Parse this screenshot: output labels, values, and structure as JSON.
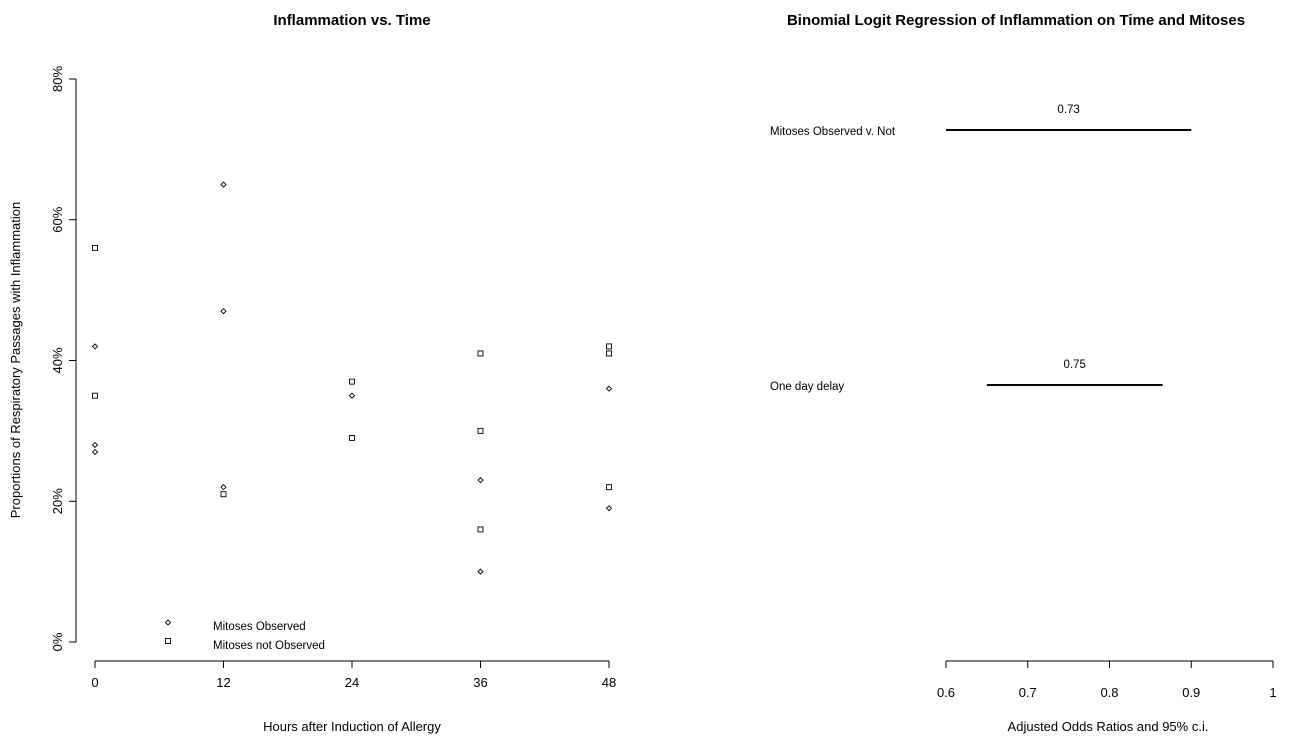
{
  "chart_data": [
    {
      "type": "scatter",
      "title": "Inflammation vs. Time",
      "xlabel": "Hours after Induction of Allergy",
      "ylabel": "Proportions of Respiratory Passages with Inflammation",
      "xlim": [
        0,
        48
      ],
      "ylim": [
        0,
        0.8
      ],
      "x_ticks": [
        "0",
        "12",
        "24",
        "36",
        "48"
      ],
      "y_ticks": [
        "0%",
        "20%",
        "40%",
        "60%",
        "80%"
      ],
      "grid": false,
      "legend_position": "bottom-left",
      "series": [
        {
          "name": "Mitoses Observed",
          "marker": "diamond",
          "points": [
            {
              "x": 0,
              "y": 0.42
            },
            {
              "x": 0,
              "y": 0.28
            },
            {
              "x": 0,
              "y": 0.27
            },
            {
              "x": 12,
              "y": 0.65
            },
            {
              "x": 12,
              "y": 0.47
            },
            {
              "x": 12,
              "y": 0.22
            },
            {
              "x": 24,
              "y": 0.35
            },
            {
              "x": 36,
              "y": 0.23
            },
            {
              "x": 36,
              "y": 0.1
            },
            {
              "x": 48,
              "y": 0.36
            },
            {
              "x": 48,
              "y": 0.19
            }
          ]
        },
        {
          "name": "Mitoses not Observed",
          "marker": "square",
          "points": [
            {
              "x": 0,
              "y": 0.56
            },
            {
              "x": 0,
              "y": 0.35
            },
            {
              "x": 12,
              "y": 0.21
            },
            {
              "x": 24,
              "y": 0.37
            },
            {
              "x": 24,
              "y": 0.29
            },
            {
              "x": 36,
              "y": 0.41
            },
            {
              "x": 36,
              "y": 0.3
            },
            {
              "x": 36,
              "y": 0.16
            },
            {
              "x": 48,
              "y": 0.42
            },
            {
              "x": 48,
              "y": 0.41
            },
            {
              "x": 48,
              "y": 0.22
            }
          ]
        }
      ]
    },
    {
      "type": "forest",
      "title": "Binomial Logit Regression of Inflammation on Time and Mitoses",
      "xlabel": "Adjusted Odds Ratios and 95% c.i.",
      "xlim": [
        0.6,
        1.0
      ],
      "x_ticks": [
        "0.6",
        "0.7",
        "0.8",
        "0.9",
        "1"
      ],
      "rows": [
        {
          "label": "Mitoses Observed v. Not",
          "estimate": 0.73,
          "estimate_label": "0.73",
          "lower": 0.6,
          "upper": 0.9
        },
        {
          "label": "One day delay",
          "estimate": 0.75,
          "estimate_label": "0.75",
          "lower": 0.65,
          "upper": 0.865
        }
      ]
    }
  ]
}
